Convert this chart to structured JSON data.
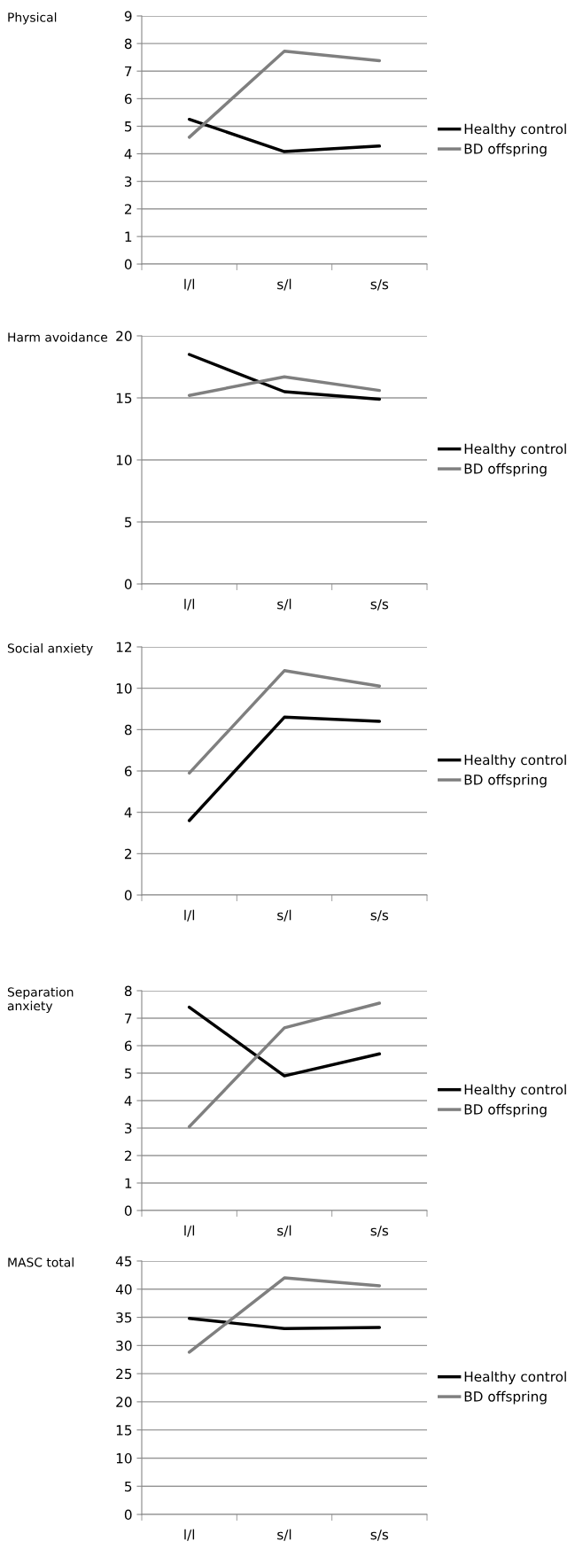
{
  "chart_data": [
    {
      "type": "line",
      "title": "Physical",
      "categories": [
        "l/l",
        "s/l",
        "s/s"
      ],
      "ylim": [
        0,
        9
      ],
      "yticks": [
        0,
        1,
        2,
        3,
        4,
        5,
        6,
        7,
        8,
        9
      ],
      "grid": "y",
      "legend": "right",
      "marker": "none",
      "series": [
        {
          "name": "Healthy control",
          "color": "#000000",
          "values": [
            5.25,
            4.08,
            4.28
          ]
        },
        {
          "name": "BD offspring",
          "color": "#7f7f7f",
          "values": [
            4.6,
            7.72,
            7.38
          ]
        }
      ]
    },
    {
      "type": "line",
      "title": "Harm avoidance",
      "categories": [
        "l/l",
        "s/l",
        "s/s"
      ],
      "ylim": [
        0,
        20
      ],
      "yticks": [
        0,
        5,
        10,
        15,
        20
      ],
      "grid": "y",
      "legend": "right",
      "marker": "none",
      "series": [
        {
          "name": "Healthy control",
          "color": "#000000",
          "values": [
            18.5,
            15.5,
            14.9
          ]
        },
        {
          "name": "BD offspring",
          "color": "#7f7f7f",
          "values": [
            15.2,
            16.7,
            15.6
          ]
        }
      ]
    },
    {
      "type": "line",
      "title": "Social anxiety",
      "categories": [
        "l/l",
        "s/l",
        "s/s"
      ],
      "ylim": [
        0,
        12
      ],
      "yticks": [
        0,
        2,
        4,
        6,
        8,
        10,
        12
      ],
      "grid": "y",
      "legend": "right",
      "marker": "none",
      "series": [
        {
          "name": "Healthy control",
          "color": "#000000",
          "values": [
            3.6,
            8.6,
            8.4
          ]
        },
        {
          "name": "BD offspring",
          "color": "#7f7f7f",
          "values": [
            5.9,
            10.85,
            10.1
          ]
        }
      ]
    },
    {
      "type": "line",
      "title": "Separation\nanxiety",
      "categories": [
        "l/l",
        "s/l",
        "s/s"
      ],
      "ylim": [
        0,
        8
      ],
      "yticks": [
        0,
        1,
        2,
        3,
        4,
        5,
        6,
        7,
        8
      ],
      "grid": "y",
      "legend": "right",
      "marker": "none",
      "series": [
        {
          "name": "Healthy control",
          "color": "#000000",
          "values": [
            7.4,
            4.9,
            5.7
          ]
        },
        {
          "name": "BD offspring",
          "color": "#7f7f7f",
          "values": [
            3.05,
            6.65,
            7.55
          ]
        }
      ]
    },
    {
      "type": "line",
      "title": "MASC total",
      "categories": [
        "l/l",
        "s/l",
        "s/s"
      ],
      "ylim": [
        0,
        45
      ],
      "yticks": [
        0,
        5,
        10,
        15,
        20,
        25,
        30,
        35,
        40,
        45
      ],
      "grid": "y",
      "legend": "right",
      "marker": "none",
      "series": [
        {
          "name": "Healthy control",
          "color": "#000000",
          "values": [
            34.8,
            33.0,
            33.2
          ]
        },
        {
          "name": "BD offspring",
          "color": "#7f7f7f",
          "values": [
            28.8,
            42.0,
            40.6
          ]
        }
      ]
    }
  ]
}
